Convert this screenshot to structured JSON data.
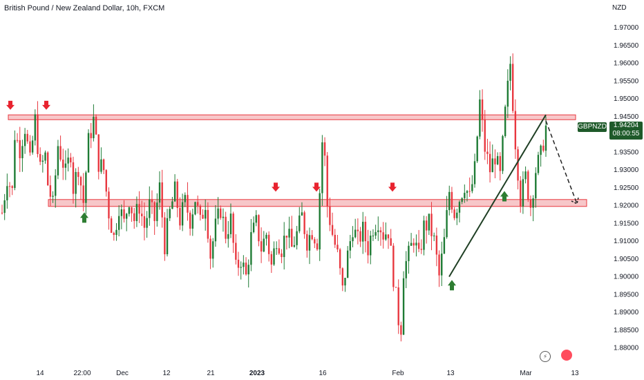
{
  "title": "British Pound / New Zealand Dollar, 10h, FXCM",
  "currency": "NZD",
  "symbol_tag": "GBPNZD",
  "last_price": "1.94204",
  "countdown": "08:00:55",
  "colors": {
    "up": "#1e7b34",
    "down": "#e8373f",
    "zone_fill": "#f7c7c9",
    "zone_stroke": "#e8373f",
    "trendline": "#1f3f24",
    "arrow_down": "#e8232f",
    "arrow_up": "#2e7d32"
  },
  "icons": [
    "flash-icon",
    "globe-icon"
  ],
  "chart_data": {
    "type": "candlestick",
    "title": "British Pound / New Zealand Dollar, 10h, FXCM",
    "ylim": [
      1.8775,
      1.9745
    ],
    "y_ticks": [
      "1.97000",
      "1.96500",
      "1.96000",
      "1.95500",
      "1.95000",
      "1.94500",
      "1.94000",
      "1.93500",
      "1.93000",
      "1.92500",
      "1.92000",
      "1.91500",
      "1.91000",
      "1.90500",
      "1.90000",
      "1.89500",
      "1.89000",
      "1.88500",
      "1.88000"
    ],
    "x_ticks": [
      "14",
      "22:00",
      "Dec",
      "12",
      "21",
      "2023",
      "16",
      "Feb",
      "13",
      "Mar",
      "13"
    ],
    "resistance_zone": [
      1.9445,
      1.9451
    ],
    "support_zone": [
      1.9205,
      1.9215
    ],
    "candle_path": [
      [
        0,
        1.918
      ],
      [
        2,
        1.928
      ],
      [
        4,
        1.924
      ],
      [
        5,
        1.94
      ],
      [
        7,
        1.936
      ],
      [
        9,
        1.942
      ],
      [
        11,
        1.932
      ],
      [
        13,
        1.944
      ],
      [
        15,
        1.93
      ],
      [
        17,
        1.934
      ],
      [
        18,
        1.926
      ],
      [
        20,
        1.92
      ],
      [
        22,
        1.937
      ],
      [
        24,
        1.932
      ],
      [
        25,
        1.929
      ],
      [
        27,
        1.935
      ],
      [
        28,
        1.925
      ],
      [
        30,
        1.931
      ],
      [
        32,
        1.921
      ],
      [
        34,
        1.938
      ],
      [
        36,
        1.944
      ],
      [
        38,
        1.932
      ],
      [
        40,
        1.93
      ],
      [
        42,
        1.918
      ],
      [
        44,
        1.911
      ],
      [
        46,
        1.92
      ],
      [
        48,
        1.915
      ],
      [
        50,
        1.922
      ],
      [
        52,
        1.916
      ],
      [
        54,
        1.92
      ],
      [
        56,
        1.914
      ],
      [
        58,
        1.92
      ],
      [
        60,
        1.916
      ],
      [
        62,
        1.925
      ],
      [
        64,
        1.909
      ],
      [
        66,
        1.918
      ],
      [
        68,
        1.924
      ],
      [
        70,
        1.916
      ],
      [
        72,
        1.921
      ],
      [
        74,
        1.916
      ],
      [
        76,
        1.922
      ],
      [
        78,
        1.915
      ],
      [
        80,
        1.921
      ],
      [
        82,
        1.906
      ],
      [
        84,
        1.914
      ],
      [
        86,
        1.919
      ],
      [
        88,
        1.912
      ],
      [
        90,
        1.916
      ],
      [
        92,
        1.902
      ],
      [
        94,
        1.905
      ],
      [
        96,
        1.9
      ],
      [
        98,
        1.911
      ],
      [
        100,
        1.915
      ],
      [
        102,
        1.908
      ],
      [
        104,
        1.912
      ],
      [
        106,
        1.903
      ],
      [
        108,
        1.911
      ],
      [
        110,
        1.908
      ],
      [
        112,
        1.913
      ],
      [
        114,
        1.908
      ],
      [
        116,
        1.912
      ],
      [
        118,
        1.917
      ],
      [
        120,
        1.91
      ],
      [
        122,
        1.913
      ],
      [
        124,
        1.91
      ],
      [
        126,
        1.938
      ],
      [
        127,
        1.933
      ],
      [
        128,
        1.92
      ],
      [
        130,
        1.912
      ],
      [
        132,
        1.906
      ],
      [
        134,
        1.896
      ],
      [
        136,
        1.906
      ],
      [
        138,
        1.914
      ],
      [
        140,
        1.91
      ],
      [
        142,
        1.913
      ],
      [
        144,
        1.908
      ],
      [
        146,
        1.914
      ],
      [
        148,
        1.916
      ],
      [
        150,
        1.912
      ],
      [
        152,
        1.913
      ],
      [
        154,
        1.9
      ],
      [
        156,
        1.888
      ],
      [
        157,
        1.886
      ],
      [
        158,
        1.902
      ],
      [
        160,
        1.906
      ],
      [
        162,
        1.911
      ],
      [
        164,
        1.905
      ],
      [
        166,
        1.914
      ],
      [
        168,
        1.915
      ],
      [
        170,
        1.91
      ],
      [
        172,
        1.9
      ],
      [
        174,
        1.91
      ],
      [
        176,
        1.924
      ],
      [
        178,
        1.918
      ],
      [
        180,
        1.922
      ],
      [
        182,
        1.926
      ],
      [
        184,
        1.922
      ],
      [
        186,
        1.93
      ],
      [
        188,
        1.949
      ],
      [
        190,
        1.936
      ],
      [
        192,
        1.93
      ],
      [
        194,
        1.934
      ],
      [
        196,
        1.928
      ],
      [
        198,
        1.946
      ],
      [
        200,
        1.96
      ],
      [
        202,
        1.938
      ],
      [
        204,
        1.922
      ],
      [
        206,
        1.928
      ],
      [
        208,
        1.92
      ],
      [
        210,
        1.93
      ],
      [
        212,
        1.934
      ],
      [
        214,
        1.942
      ]
    ],
    "arrows_down": [
      [
        15,
        1.9475
      ],
      [
        67,
        1.9475
      ],
      [
        399,
        1.9245
      ],
      [
        458,
        1.9245
      ],
      [
        568,
        1.9245
      ]
    ],
    "arrows_up": [
      [
        122,
        1.9175
      ],
      [
        654,
        1.8985
      ],
      [
        730,
        1.9235
      ]
    ],
    "trendline": [
      [
        650,
        1.9
      ],
      [
        790,
        1.9455
      ]
    ],
    "projection": [
      [
        790,
        1.9438
      ],
      [
        835,
        1.9205
      ]
    ]
  }
}
